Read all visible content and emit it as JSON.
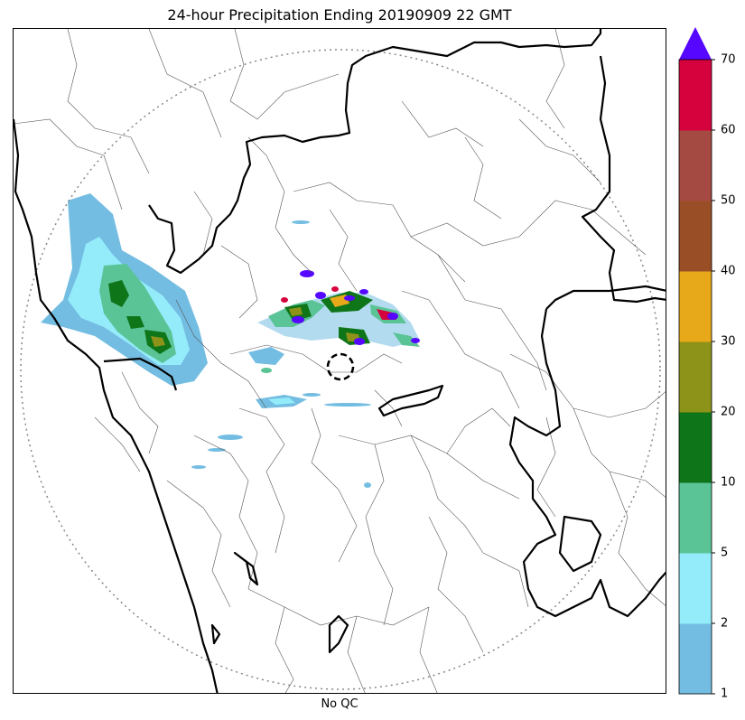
{
  "title": "24-hour Precipitation Ending 20190909 22 GMT",
  "xlabel": "No QC",
  "colorbar": {
    "ticks": [
      "1",
      "2",
      "5",
      "10",
      "20",
      "30",
      "40",
      "50",
      "60",
      "70"
    ],
    "bins": [
      {
        "from": "1",
        "to": "2",
        "color": "#74bde2"
      },
      {
        "from": "2",
        "to": "5",
        "color": "#94ecfb"
      },
      {
        "from": "5",
        "to": "10",
        "color": "#5bc497"
      },
      {
        "from": "10",
        "to": "20",
        "color": "#0e7519"
      },
      {
        "from": "20",
        "to": "30",
        "color": "#8d9318"
      },
      {
        "from": "30",
        "to": "40",
        "color": "#e7a819"
      },
      {
        "from": "40",
        "to": "50",
        "color": "#9a4e26"
      },
      {
        "from": "50",
        "to": "60",
        "color": "#a54a42"
      },
      {
        "from": "60",
        "to": "70",
        "color": "#d5023d"
      }
    ],
    "extend_color": "#5607ff"
  },
  "map": {
    "range_ring": "dotted gray",
    "radar_marker": "dashed black circle",
    "colors": {
      "coast_and_borders": "#000000",
      "district_lines": "#555555",
      "range_ring": "#888888"
    }
  }
}
